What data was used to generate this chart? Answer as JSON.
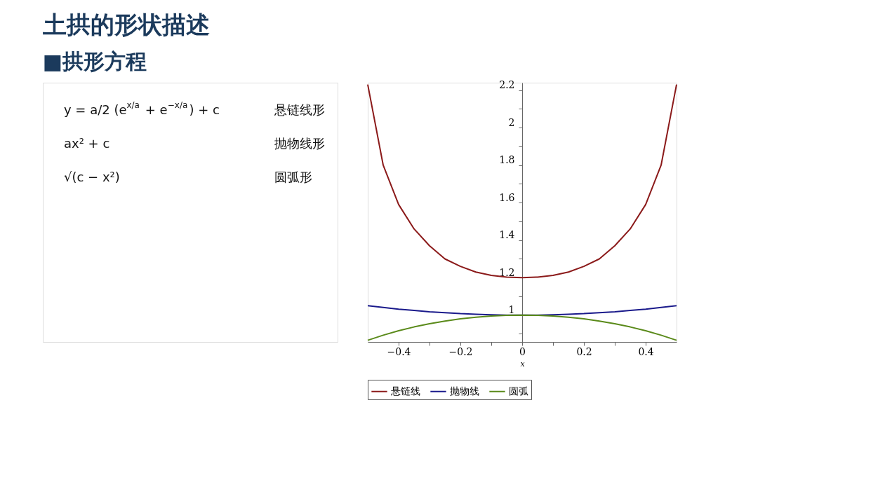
{
  "chart_data": {
    "type": "line",
    "title": "土拱的形状描述",
    "subtitle": "■拱形方程",
    "xlabel": "x",
    "annotations": [
      "y = a/2 (e$^{x/a}$ + e$^{−x/a}$) + c",
      "悬链线形",
      "ax² + c",
      "抛物线形",
      "√(c − x²)",
      "圆弧形"
    ],
    "x": [
      -0.5,
      -0.45,
      -0.4,
      -0.35,
      -0.3,
      -0.25,
      -0.2,
      -0.15,
      -0.1,
      -0.05,
      0,
      0.05,
      0.1,
      0.15,
      0.2,
      0.25,
      0.3,
      0.35,
      0.4,
      0.45,
      0.5
    ],
    "series": [
      {
        "name": "悬链线",
        "color": "#8b1a1a",
        "values": [
          2.23,
          1.8,
          1.59,
          1.46,
          1.37,
          1.3,
          1.26,
          1.23,
          1.212,
          1.203,
          1.2,
          1.203,
          1.212,
          1.23,
          1.26,
          1.3,
          1.37,
          1.46,
          1.59,
          1.8,
          2.23
        ]
      },
      {
        "name": "抛物线",
        "color": "#1a1a8b",
        "values": [
          1.05,
          1.041,
          1.032,
          1.025,
          1.018,
          1.013,
          1.008,
          1.005,
          1.002,
          1.0,
          1.0,
          1.0,
          1.002,
          1.005,
          1.008,
          1.013,
          1.018,
          1.025,
          1.032,
          1.041,
          1.05
        ]
      },
      {
        "name": "圆弧",
        "color": "#5a8a1a",
        "values": [
          0.866,
          0.893,
          0.917,
          0.937,
          0.954,
          0.968,
          0.98,
          0.989,
          0.995,
          0.999,
          1.0,
          0.999,
          0.995,
          0.989,
          0.98,
          0.968,
          0.954,
          0.937,
          0.917,
          0.893,
          0.866
        ]
      }
    ],
    "xlim": [
      -0.5,
      0.5
    ],
    "ylim": [
      0.857,
      2.24
    ],
    "xticks": [
      -0.4,
      {
        "value": -0.3,
        "label": null
      },
      -0.2,
      {
        "value": -0.1,
        "label": null
      },
      0,
      {
        "value": 0.1,
        "label": null
      },
      0.2,
      {
        "value": 0.3,
        "label": null
      },
      0.4
    ],
    "yticks": [
      {
        "value": 0.9,
        "label": null
      },
      1,
      {
        "value": 1.1,
        "label": null
      },
      1.2,
      {
        "value": 1.3,
        "label": null
      },
      1.4,
      {
        "value": 1.5,
        "label": null
      },
      1.6,
      {
        "value": 1.7,
        "label": null
      },
      1.8,
      {
        "value": 1.9,
        "label": null
      },
      2,
      {
        "value": 2.1,
        "label": null
      },
      2.2
    ],
    "grid": false,
    "legend": "bottom",
    "line_style": "solid",
    "marker": "none"
  }
}
